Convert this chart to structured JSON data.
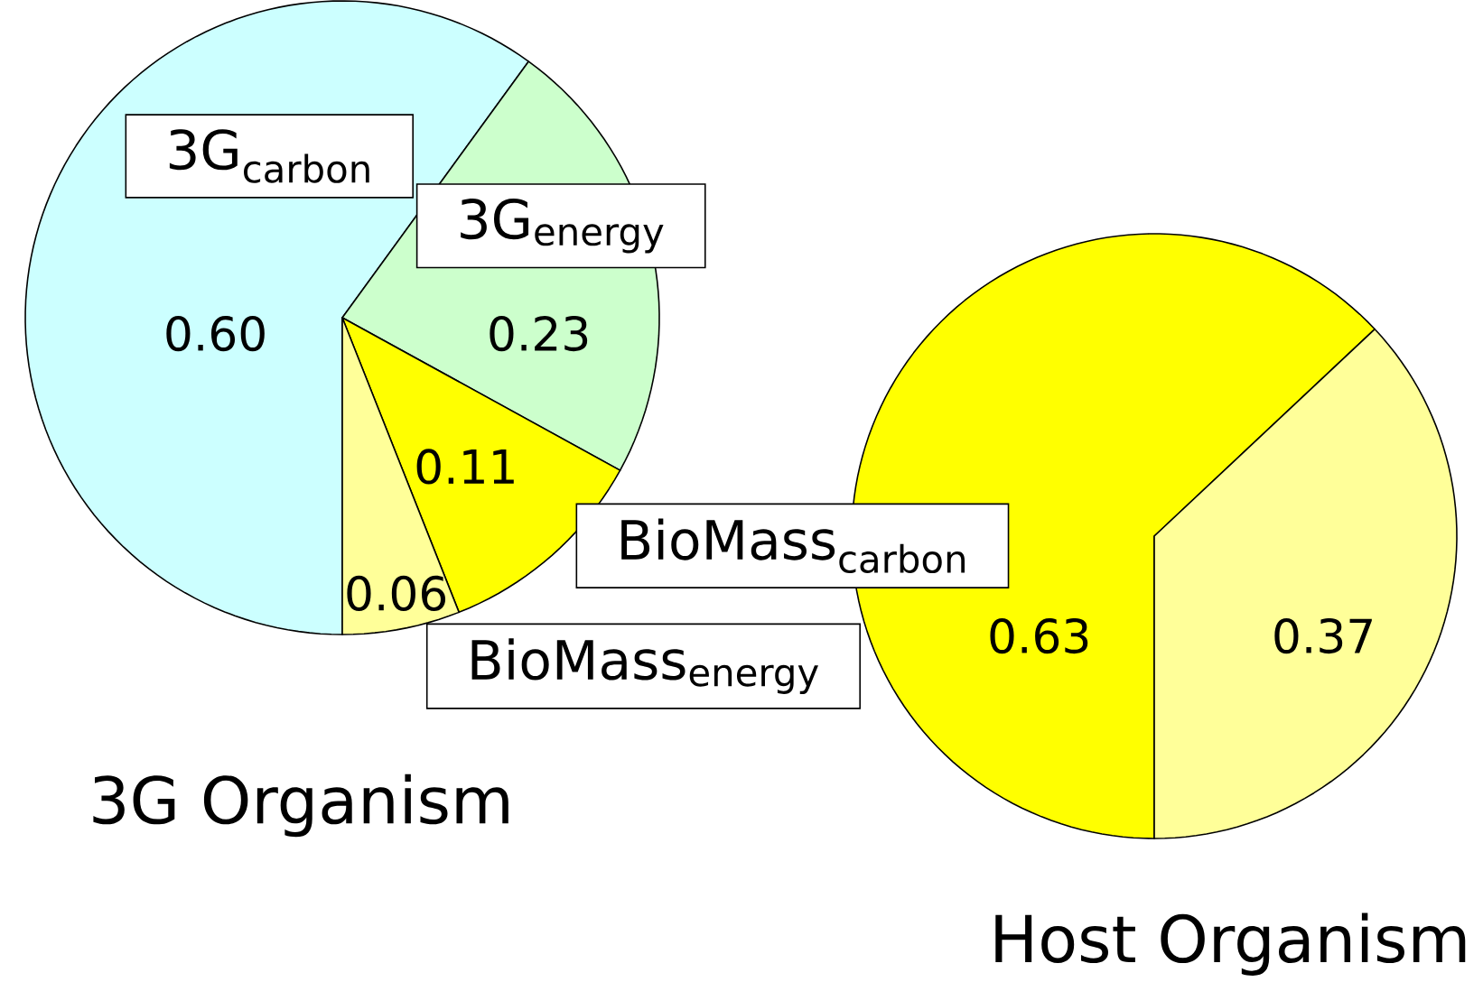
{
  "chart_data": [
    {
      "type": "pie",
      "title": "3G Organism",
      "categories": [
        "3G$_{carbon}$",
        "3G$_{energy}$",
        "BioMass$_{carbon}$",
        "BioMass$_{energy}$"
      ],
      "values": [
        0.6,
        0.23,
        0.11,
        0.06
      ],
      "value_labels": [
        "0.60",
        "0.23",
        "0.11",
        "0.06"
      ],
      "colors": [
        "#ccffff",
        "#ccffcc",
        "#ffff00",
        "#ffff99"
      ]
    },
    {
      "type": "pie",
      "title": "Host Organism",
      "categories": [
        null,
        null
      ],
      "values": [
        0.63,
        0.37
      ],
      "value_labels": [
        "0.63",
        "0.37"
      ],
      "colors": [
        "#ffff00",
        "#ffff99"
      ]
    }
  ]
}
